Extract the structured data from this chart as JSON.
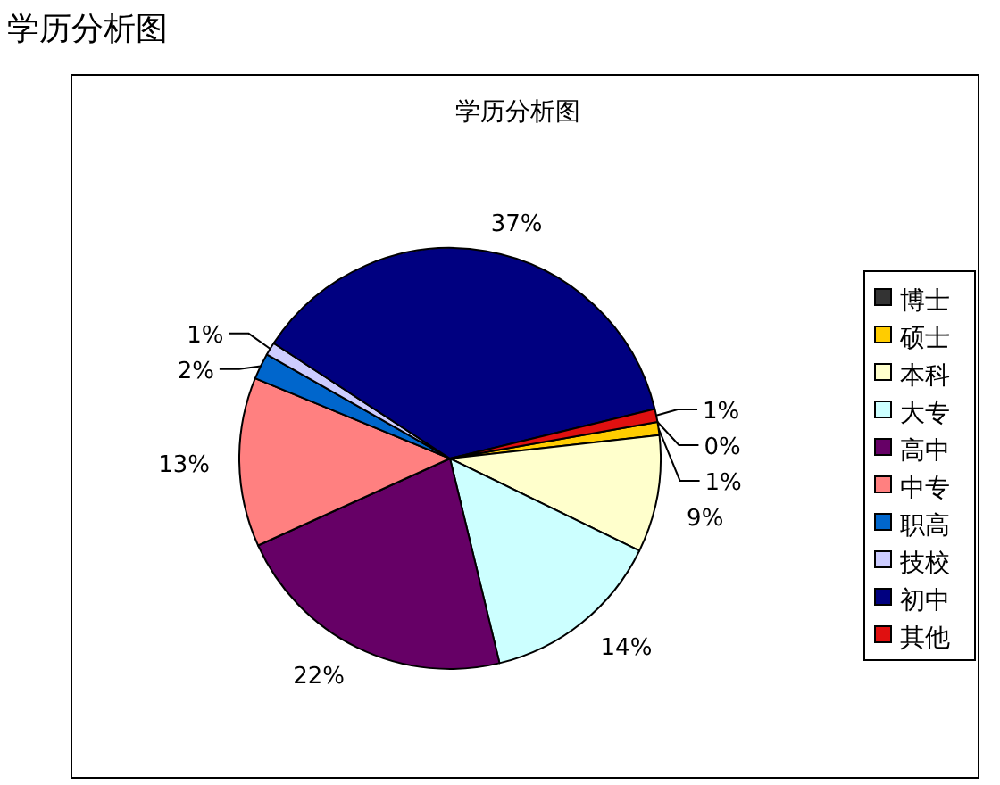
{
  "chart_data": {
    "type": "pie",
    "title": "学历分析图",
    "annotations": [
      "学历分析图"
    ],
    "categories": [
      "博士",
      "硕士",
      "本科",
      "大专",
      "高中",
      "中专",
      "职高",
      "技校",
      "初中",
      "其他"
    ],
    "values": [
      0,
      1,
      9,
      14,
      22,
      13,
      2,
      1,
      37,
      1
    ],
    "value_labels": [
      "0%",
      "1%",
      "9%",
      "14%",
      "22%",
      "13%",
      "2%",
      "1%",
      "37%",
      "1%"
    ],
    "colors": [
      "#333333",
      "#ffcc00",
      "#ffffcc",
      "#ccffff",
      "#660066",
      "#ff8080",
      "#0066cc",
      "#ccccff",
      "#000080",
      "#e01010"
    ],
    "legend": "right"
  }
}
